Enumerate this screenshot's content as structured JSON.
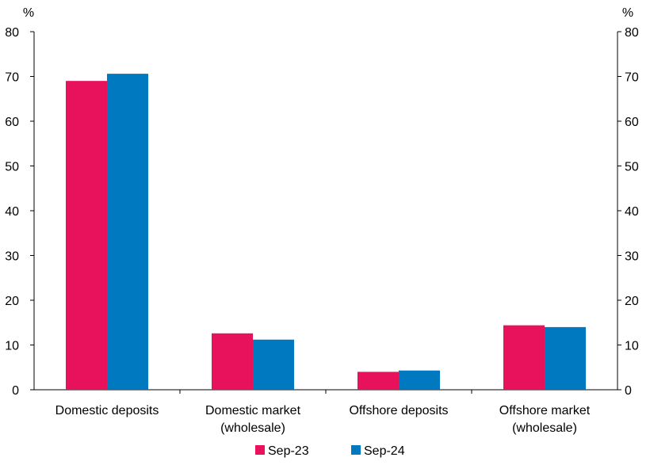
{
  "chart_data": {
    "type": "bar",
    "categories": [
      [
        "Domestic deposits"
      ],
      [
        "Domestic market",
        "(wholesale)"
      ],
      [
        "Offshore deposits"
      ],
      [
        "Offshore market",
        "(wholesale)"
      ]
    ],
    "series": [
      {
        "name": "Sep-23",
        "color": "#E8125C",
        "values": [
          69.0,
          12.6,
          4.0,
          14.4
        ]
      },
      {
        "name": "Sep-24",
        "color": "#0079C1",
        "values": [
          70.6,
          11.2,
          4.3,
          14.0
        ]
      }
    ],
    "ylabel_left": "%",
    "ylabel_right": "%",
    "ylim": [
      0,
      80
    ],
    "yticks": [
      0,
      10,
      20,
      30,
      40,
      50,
      60,
      70,
      80
    ],
    "grid": false,
    "legend_position": "bottom-center"
  }
}
